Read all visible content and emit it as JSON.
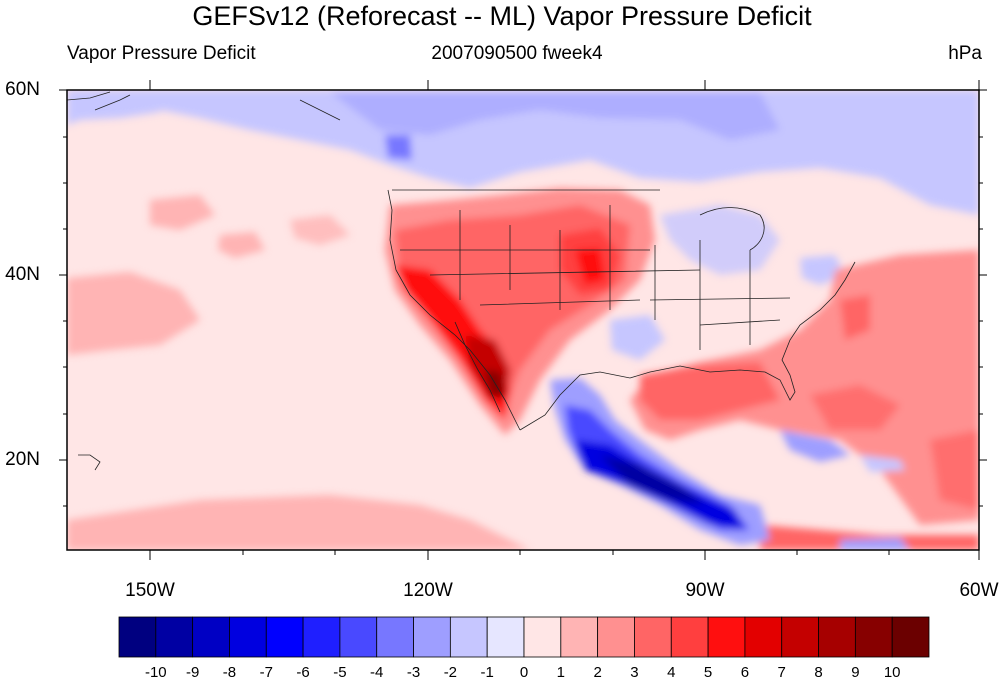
{
  "title": "GEFSv12 (Reforecast -- ML) Vapor Pressure Deficit",
  "subtitle_left": "Vapor Pressure Deficit",
  "subtitle_center": "2007090500 fweek4",
  "subtitle_right": "hPa",
  "lat_labels": [
    "60N",
    "40N",
    "20N"
  ],
  "lon_labels": [
    "150W",
    "120W",
    "90W",
    "60W"
  ],
  "map_extent": {
    "lon_min": -159,
    "lon_max": -60,
    "lat_min": 10,
    "lat_max": 60
  },
  "colorbar": {
    "labels": [
      "-10",
      "-9",
      "-8",
      "-7",
      "-6",
      "-5",
      "-4",
      "-3",
      "-2",
      "-1",
      "0",
      "1",
      "2",
      "3",
      "4",
      "5",
      "6",
      "7",
      "8",
      "9",
      "10"
    ],
    "colors": [
      "#000080",
      "#0000a3",
      "#0000c4",
      "#0000e0",
      "#0000ff",
      "#1f1fff",
      "#4949ff",
      "#7777ff",
      "#9e9eff",
      "#c6c6ff",
      "#e6e6ff",
      "#ffe6e6",
      "#ffb4b4",
      "#ff9090",
      "#ff6565",
      "#ff3f3f",
      "#ff0f0f",
      "#e30000",
      "#c40000",
      "#a60000",
      "#870000",
      "#6b0000"
    ]
  }
}
